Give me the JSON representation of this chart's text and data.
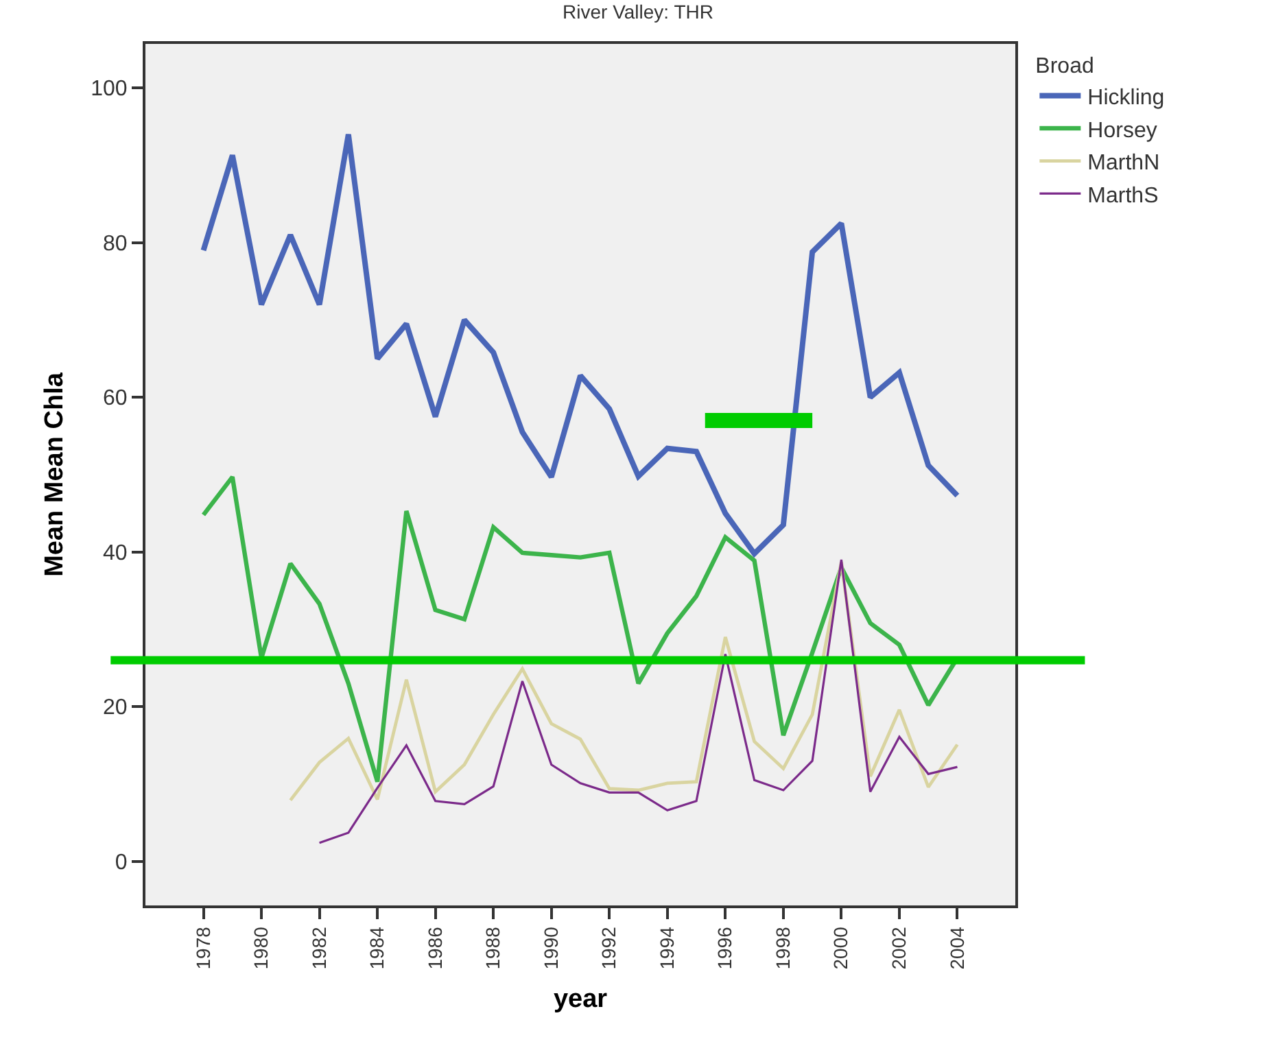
{
  "chart_data": {
    "type": "line",
    "title": "River Valley: THR",
    "xlabel": "year",
    "ylabel": "Mean Mean Chla",
    "legend_title": "Broad",
    "legend": "top right",
    "xlim": [
      1976,
      2006
    ],
    "xticks": [
      1978,
      1980,
      1982,
      1984,
      1986,
      1988,
      1990,
      1992,
      1994,
      1996,
      1998,
      2000,
      2002,
      2004
    ],
    "ylim": [
      -5.7,
      105.7
    ],
    "yticks": [
      0,
      20,
      40,
      60,
      80,
      100
    ],
    "grid": false,
    "x": [
      1978,
      1979,
      1980,
      1981,
      1982,
      1983,
      1984,
      1985,
      1986,
      1987,
      1988,
      1989,
      1990,
      1991,
      1992,
      1993,
      1994,
      1995,
      1996,
      1997,
      1998,
      1999,
      2000,
      2001,
      2002,
      2003,
      2004
    ],
    "series": [
      {
        "name": "Hickling",
        "color": "#4a66b8",
        "values": [
          79,
          91.3,
          72,
          81,
          72,
          94,
          65,
          69.5,
          57.5,
          70,
          65.8,
          55.5,
          49.7,
          62.8,
          58.5,
          49.8,
          53.4,
          53,
          45,
          39.8,
          43.5,
          78.8,
          82.5,
          60,
          63.2,
          51.2,
          47.3
        ]
      },
      {
        "name": "Horsey",
        "color": "#3cb44b",
        "values": [
          44.8,
          49.7,
          26.3,
          38.5,
          33.3,
          23,
          10.3,
          45.3,
          32.5,
          31.3,
          43.2,
          39.9,
          39.6,
          39.3,
          39.9,
          23,
          29.5,
          34.3,
          41.9,
          38.9,
          16.3,
          27,
          38,
          30.8,
          28,
          20.2,
          26.3
        ]
      },
      {
        "name": "MarthN",
        "color": "#d9d4a0",
        "values": [
          null,
          null,
          null,
          7.9,
          12.8,
          15.9,
          8,
          23.5,
          9,
          12.5,
          19,
          24.9,
          17.8,
          15.8,
          9.4,
          9.2,
          10.1,
          10.3,
          29,
          15.5,
          12,
          19,
          38.7,
          11,
          19.6,
          9.6,
          15.1
        ]
      },
      {
        "name": "MarthS",
        "color": "#7b2a8a",
        "values": [
          null,
          null,
          null,
          null,
          2.4,
          3.7,
          9.5,
          15,
          7.8,
          7.4,
          9.7,
          23.3,
          12.5,
          10.1,
          8.9,
          8.9,
          6.6,
          7.8,
          26.8,
          10.5,
          9.2,
          13,
          39,
          9,
          16.1,
          11.3,
          12.2
        ]
      },
      {
        "type": "line",
        "color": "#00cc00",
        "x": [
          1995.3,
          1999
        ],
        "values": [
          57,
          57
        ]
      }
    ],
    "ref_lines": [
      {
        "axis": "y",
        "value": 26,
        "color": "#00cc00"
      }
    ]
  }
}
